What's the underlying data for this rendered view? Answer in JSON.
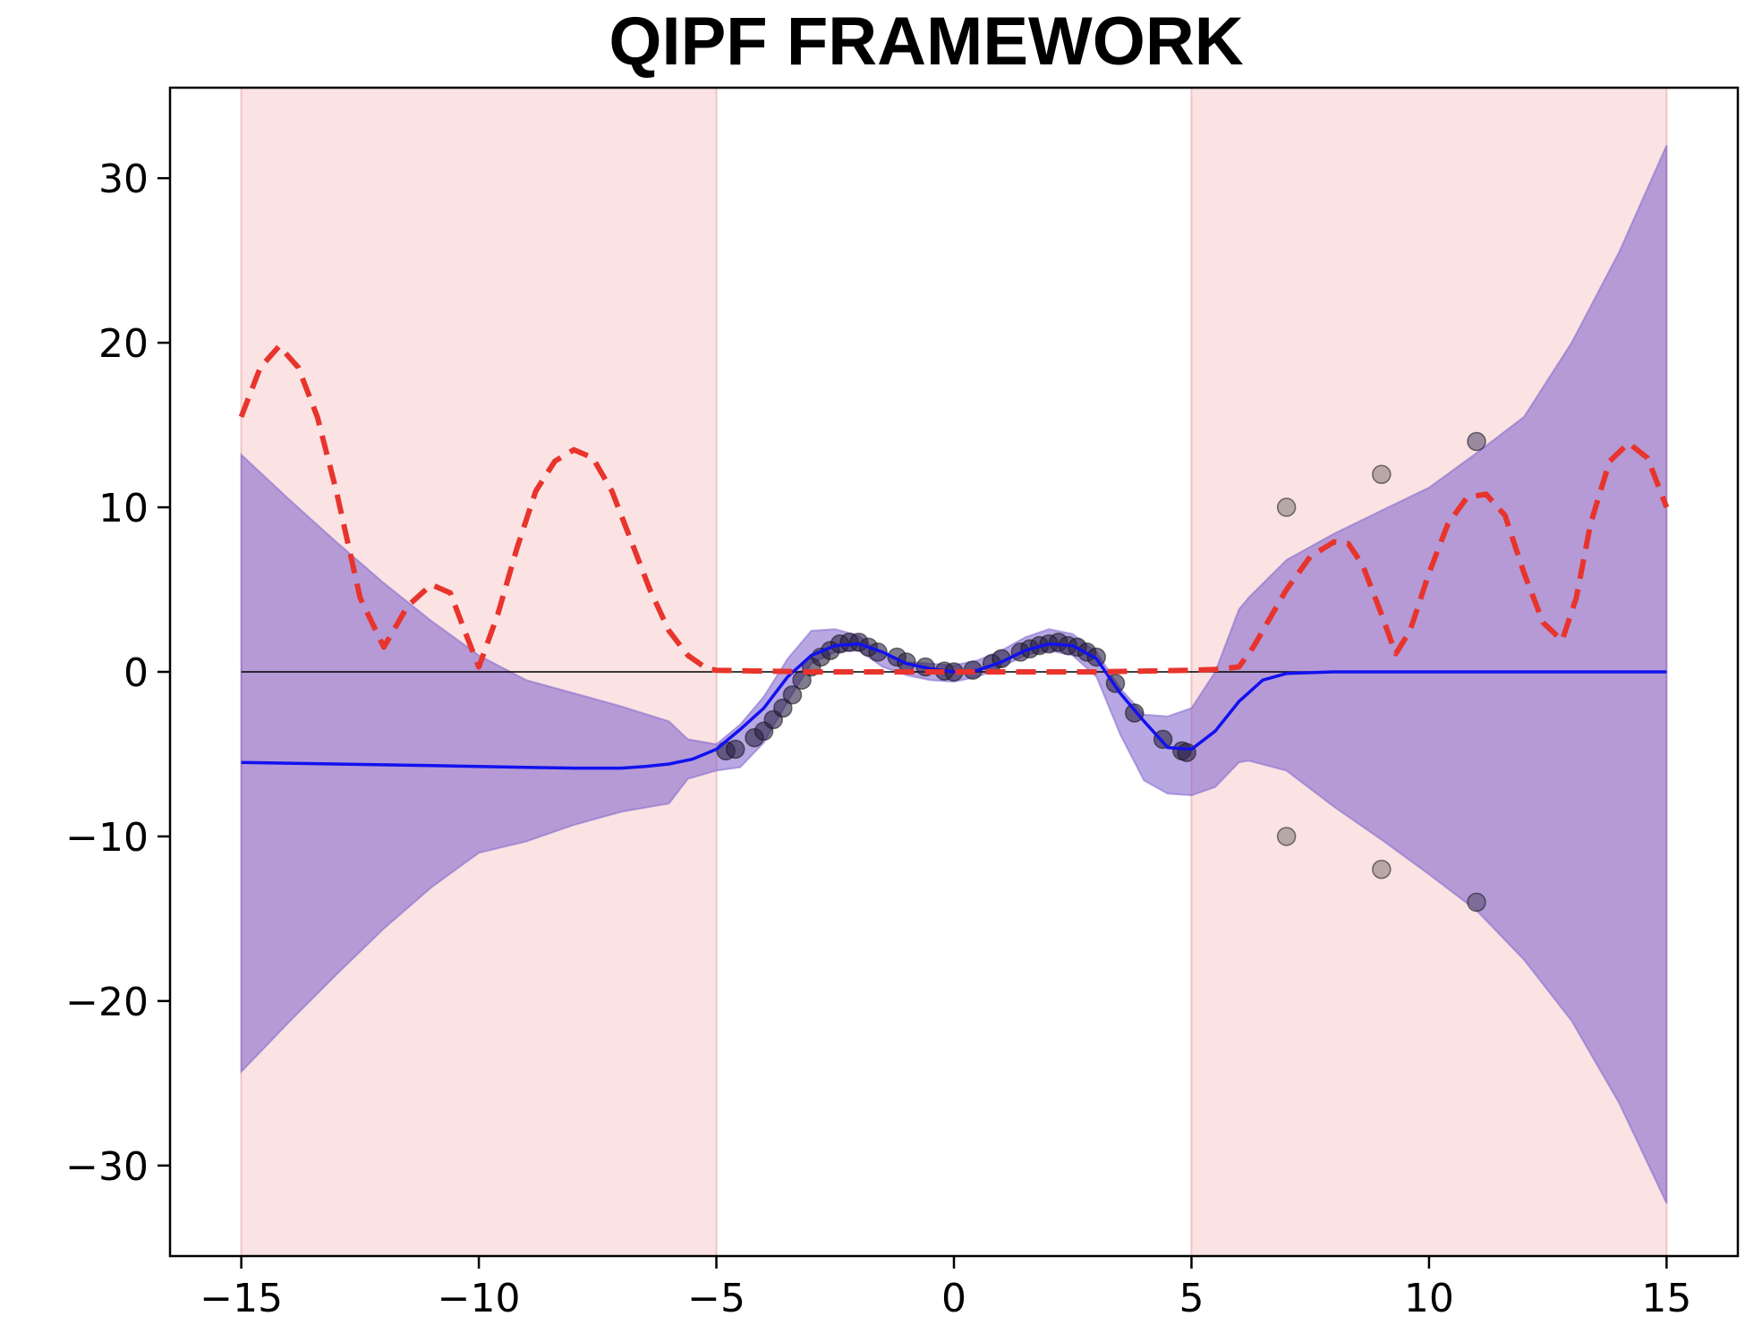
{
  "chart_data": {
    "type": "line",
    "title": "QIPF  FRAMEWORK",
    "xlabel": "",
    "ylabel": "",
    "xlim": [
      -16.5,
      16.5
    ],
    "ylim": [
      -35.5,
      35.5
    ],
    "xticks": [
      -15,
      -10,
      -5,
      0,
      5,
      10,
      15
    ],
    "yticks": [
      -30,
      -20,
      -10,
      0,
      10,
      20,
      30
    ],
    "xtick_labels": [
      "−15",
      "−10",
      "−5",
      "0",
      "5",
      "10",
      "15"
    ],
    "ytick_labels": [
      "−30",
      "−20",
      "−10",
      "0",
      "10",
      "20",
      "30"
    ],
    "grid": false,
    "legend": "none",
    "shaded_regions": [
      {
        "x_start": -15,
        "x_end": -5,
        "color": "#fbe3e3"
      },
      {
        "x_start": 5,
        "x_end": 15,
        "color": "#fbe3e3"
      }
    ],
    "reference_line": {
      "y": 0,
      "color": "#000000"
    },
    "confidence_band": {
      "color": "#7b5fcc",
      "x": [
        -15,
        -14,
        -13,
        -12,
        -11,
        -10,
        -9,
        -8,
        -7,
        -6,
        -5.6,
        -5,
        -4.5,
        -4,
        -3.5,
        -3,
        -2.5,
        -2,
        -1.5,
        -1,
        -0.5,
        0,
        0.5,
        1,
        1.5,
        2,
        2.5,
        3,
        3.5,
        4,
        4.5,
        5,
        5.5,
        6,
        6.2,
        7,
        8,
        9,
        10,
        11,
        12,
        13,
        14,
        15
      ],
      "upper": [
        13.2,
        10.5,
        7.9,
        5.4,
        3.1,
        1.0,
        -0.5,
        -1.3,
        -2.1,
        -3.0,
        -4.1,
        -4.4,
        -3.2,
        -1.5,
        0.8,
        2.5,
        2.6,
        2.2,
        1.0,
        0.6,
        0.5,
        0.4,
        0.7,
        1.3,
        2.1,
        2.6,
        2.3,
        1.2,
        -1.0,
        -2.6,
        -2.7,
        -2.2,
        0.0,
        3.8,
        4.5,
        6.8,
        8.4,
        9.8,
        11.2,
        13.3,
        15.5,
        20.0,
        25.5,
        32.0
      ],
      "lower": [
        -24.3,
        -21.3,
        -18.4,
        -15.6,
        -13.1,
        -11.0,
        -10.3,
        -9.3,
        -8.5,
        -8.0,
        -6.5,
        -6.0,
        -5.8,
        -4.3,
        -1.8,
        0.5,
        1.2,
        1.3,
        0.3,
        -0.2,
        -0.5,
        -0.6,
        -0.3,
        0.3,
        1.0,
        1.3,
        1.0,
        -0.3,
        -3.8,
        -6.6,
        -7.4,
        -7.5,
        -7.0,
        -5.5,
        -5.4,
        -6.0,
        -8.2,
        -10.2,
        -12.3,
        -14.5,
        -17.5,
        -21.2,
        -26.2,
        -32.3
      ]
    },
    "series": [
      {
        "color": "#1111ee",
        "style": "solid",
        "x": [
          -15,
          -14,
          -13,
          -12,
          -11,
          -10,
          -9,
          -8,
          -7,
          -6.5,
          -6,
          -5.5,
          -5,
          -4.5,
          -4,
          -3.5,
          -3,
          -2.5,
          -2,
          -1.5,
          -1,
          -0.5,
          0,
          0.5,
          1,
          1.5,
          2,
          2.5,
          3,
          3.5,
          4,
          4.5,
          5,
          5.5,
          6,
          6.5,
          7,
          8,
          10,
          12,
          15
        ],
        "y": [
          -5.5,
          -5.55,
          -5.6,
          -5.65,
          -5.7,
          -5.75,
          -5.8,
          -5.85,
          -5.85,
          -5.75,
          -5.6,
          -5.3,
          -4.7,
          -3.5,
          -2.2,
          -0.3,
          1.0,
          1.6,
          1.7,
          1.2,
          0.5,
          0.2,
          0.0,
          0.1,
          0.6,
          1.3,
          1.7,
          1.6,
          0.8,
          -1.3,
          -3.0,
          -4.6,
          -4.7,
          -3.6,
          -1.8,
          -0.5,
          -0.1,
          0.0,
          0.0,
          0.0,
          0.0
        ]
      },
      {
        "color": "#e8342c",
        "style": "dashed",
        "x": [
          -15,
          -14.6,
          -14.2,
          -13.8,
          -13.4,
          -13,
          -12.5,
          -12,
          -11.5,
          -11,
          -10.6,
          -10.3,
          -10,
          -9.6,
          -9.2,
          -8.8,
          -8.4,
          -8,
          -7.6,
          -7.2,
          -6.8,
          -6.4,
          -6,
          -5.6,
          -5.2,
          -5,
          -4,
          -3,
          -2,
          -1,
          0,
          1,
          2,
          3,
          4,
          5,
          5.5,
          6,
          6.3,
          6.6,
          7,
          7.5,
          8,
          8.3,
          8.6,
          9,
          9.3,
          9.6,
          10,
          10.4,
          10.8,
          11.2,
          11.6,
          12,
          12.4,
          12.8,
          13.1,
          13.4,
          13.8,
          14.2,
          14.6,
          15
        ],
        "y": [
          15.5,
          18.5,
          19.8,
          18.5,
          15.5,
          11.0,
          4.5,
          1.5,
          4.0,
          5.3,
          4.8,
          2.5,
          0.3,
          3.5,
          7.5,
          11.0,
          12.8,
          13.5,
          13.0,
          11.0,
          8.0,
          5.0,
          2.5,
          1.0,
          0.2,
          0.1,
          0.05,
          0.0,
          0.0,
          0.0,
          0.0,
          0.0,
          0.0,
          0.0,
          0.05,
          0.1,
          0.15,
          0.3,
          1.5,
          3.0,
          5.0,
          7.0,
          7.9,
          7.8,
          6.5,
          3.5,
          1.1,
          2.5,
          6.0,
          9.0,
          10.6,
          10.8,
          9.5,
          6.0,
          3.0,
          1.9,
          4.5,
          9.0,
          12.8,
          13.9,
          13.0,
          10.0
        ]
      }
    ],
    "scatter": [
      {
        "x": -4.8,
        "y": -4.8,
        "color": "#2b2244"
      },
      {
        "x": -4.6,
        "y": -4.7,
        "color": "#2b2244"
      },
      {
        "x": -4.2,
        "y": -4.0,
        "color": "#2b2244"
      },
      {
        "x": -4.0,
        "y": -3.6,
        "color": "#2b2244"
      },
      {
        "x": -3.8,
        "y": -2.9,
        "color": "#2b2244"
      },
      {
        "x": -3.6,
        "y": -2.2,
        "color": "#2b2244"
      },
      {
        "x": -3.4,
        "y": -1.4,
        "color": "#2b2244"
      },
      {
        "x": -3.2,
        "y": -0.5,
        "color": "#2b2244"
      },
      {
        "x": -3.0,
        "y": 0.3,
        "color": "#2b2244"
      },
      {
        "x": -2.8,
        "y": 0.9,
        "color": "#2b2244"
      },
      {
        "x": -2.6,
        "y": 1.3,
        "color": "#2b2244"
      },
      {
        "x": -2.4,
        "y": 1.7,
        "color": "#2b2244"
      },
      {
        "x": -2.2,
        "y": 1.8,
        "color": "#2b2244"
      },
      {
        "x": -2.0,
        "y": 1.8,
        "color": "#2b2244"
      },
      {
        "x": -1.8,
        "y": 1.5,
        "color": "#2b2244"
      },
      {
        "x": -1.6,
        "y": 1.2,
        "color": "#2b2244"
      },
      {
        "x": -1.2,
        "y": 0.9,
        "color": "#2b2244"
      },
      {
        "x": -1.0,
        "y": 0.6,
        "color": "#2b2244"
      },
      {
        "x": -0.6,
        "y": 0.3,
        "color": "#2b2244"
      },
      {
        "x": -0.2,
        "y": 0.05,
        "color": "#2b2244"
      },
      {
        "x": 0.0,
        "y": 0.0,
        "color": "#2b2244"
      },
      {
        "x": 0.4,
        "y": 0.1,
        "color": "#2b2244"
      },
      {
        "x": 0.8,
        "y": 0.5,
        "color": "#2b2244"
      },
      {
        "x": 1.0,
        "y": 0.8,
        "color": "#2b2244"
      },
      {
        "x": 1.4,
        "y": 1.2,
        "color": "#2b2244"
      },
      {
        "x": 1.6,
        "y": 1.4,
        "color": "#2b2244"
      },
      {
        "x": 1.8,
        "y": 1.6,
        "color": "#2b2244"
      },
      {
        "x": 2.0,
        "y": 1.7,
        "color": "#2b2244"
      },
      {
        "x": 2.2,
        "y": 1.8,
        "color": "#2b2244"
      },
      {
        "x": 2.4,
        "y": 1.6,
        "color": "#2b2244"
      },
      {
        "x": 2.6,
        "y": 1.5,
        "color": "#2b2244"
      },
      {
        "x": 2.8,
        "y": 1.2,
        "color": "#2b2244"
      },
      {
        "x": 3.0,
        "y": 0.9,
        "color": "#2b2244"
      },
      {
        "x": 3.4,
        "y": -0.7,
        "color": "#2b2244"
      },
      {
        "x": 3.8,
        "y": -2.5,
        "color": "#2b2244"
      },
      {
        "x": 4.4,
        "y": -4.1,
        "color": "#2b2244"
      },
      {
        "x": 4.8,
        "y": -4.8,
        "color": "#2b2244"
      },
      {
        "x": 4.9,
        "y": -4.9,
        "color": "#2b2244"
      },
      {
        "x": 7,
        "y": 10,
        "color": "#8a7f7f"
      },
      {
        "x": 9,
        "y": 12,
        "color": "#8a7f7f"
      },
      {
        "x": 11,
        "y": 14,
        "color": "#5a4f70"
      },
      {
        "x": 7,
        "y": -10,
        "color": "#8a7f7f"
      },
      {
        "x": 9,
        "y": -12,
        "color": "#8a7f7f"
      },
      {
        "x": 11,
        "y": -14,
        "color": "#5a4f70"
      }
    ]
  }
}
